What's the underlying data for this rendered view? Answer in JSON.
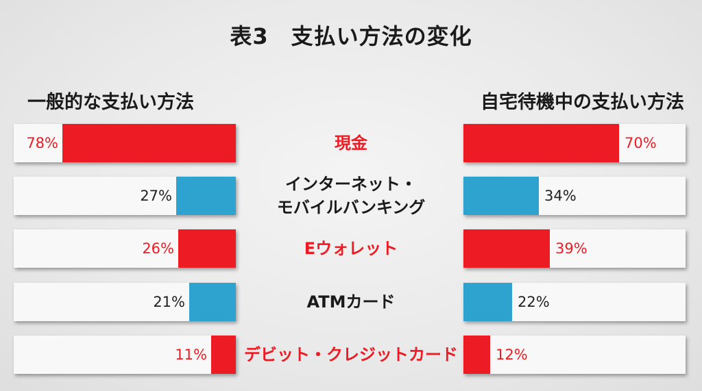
{
  "title": "表3　支払い方法の変化",
  "left_panel_title": "一般的な支払い方法",
  "right_panel_title": "自宅待機中の支払い方法",
  "colors": {
    "red": "#ed1c24",
    "blue": "#2fa3cf",
    "dark_text": "#1a1a1a",
    "track": "#f8f8f8"
  },
  "chart_data": {
    "type": "bar",
    "orientation": "horizontal-butterfly",
    "title": "表3　支払い方法の変化",
    "xlim": [
      0,
      100
    ],
    "categories": [
      "現金",
      "インターネット・\nモバイルバンキング",
      "Eウォレット",
      "ATMカード",
      "デビット・クレジットカード"
    ],
    "category_colors": [
      "red",
      "blue",
      "red",
      "blue",
      "red"
    ],
    "series": [
      {
        "name": "一般的な支払い方法",
        "values": [
          78,
          27,
          26,
          21,
          11
        ],
        "labels": [
          "78%",
          "27%",
          "26%",
          "21%",
          "11%"
        ]
      },
      {
        "name": "自宅待機中の支払い方法",
        "values": [
          70,
          34,
          39,
          22,
          12
        ],
        "labels": [
          "70%",
          "34%",
          "39%",
          "22%",
          "12%"
        ]
      }
    ]
  }
}
